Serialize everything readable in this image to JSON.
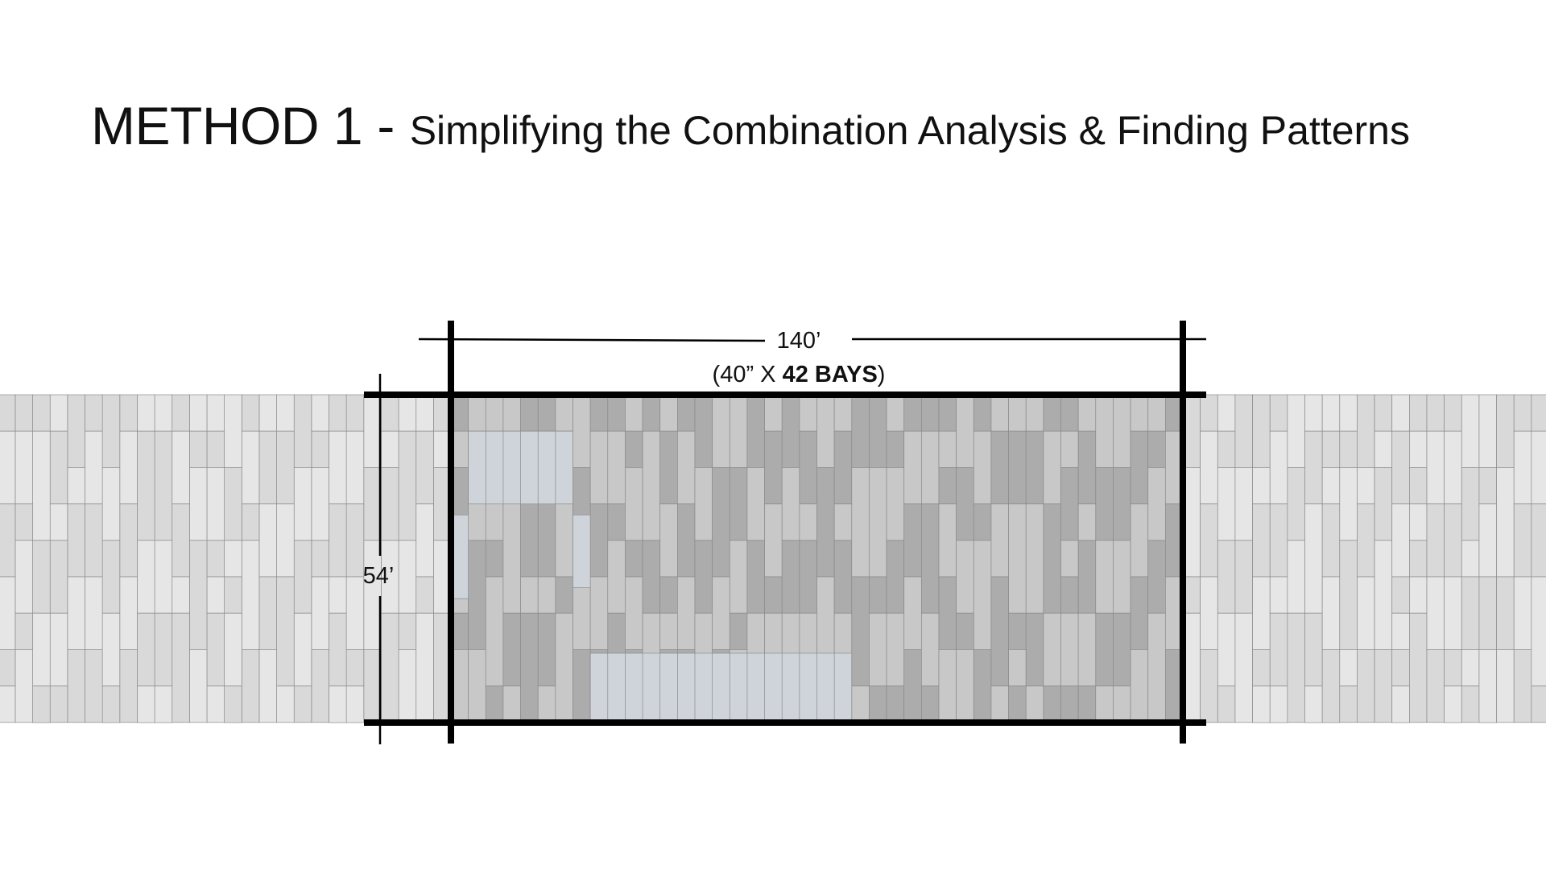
{
  "title": {
    "main": "METHOD 1",
    "separator": " - ",
    "subtitle": "Simplifying the Combination Analysis & Finding Patterns"
  },
  "dimensions": {
    "width_label": "140’",
    "bays_prefix": "(40” X ",
    "bays_bold": "42 BAYS",
    "bays_suffix": ")",
    "height_label": "54’"
  },
  "grid": {
    "bays": 42,
    "colors": {
      "outside_light": "#e6e6e6",
      "outside_mid": "#d9d9d9",
      "inside_light": "#c8c8c8",
      "inside_dark": "#acacac",
      "highlight": "#cfd4db",
      "gridline": "#8a8a8a",
      "frame": "#000000"
    }
  }
}
